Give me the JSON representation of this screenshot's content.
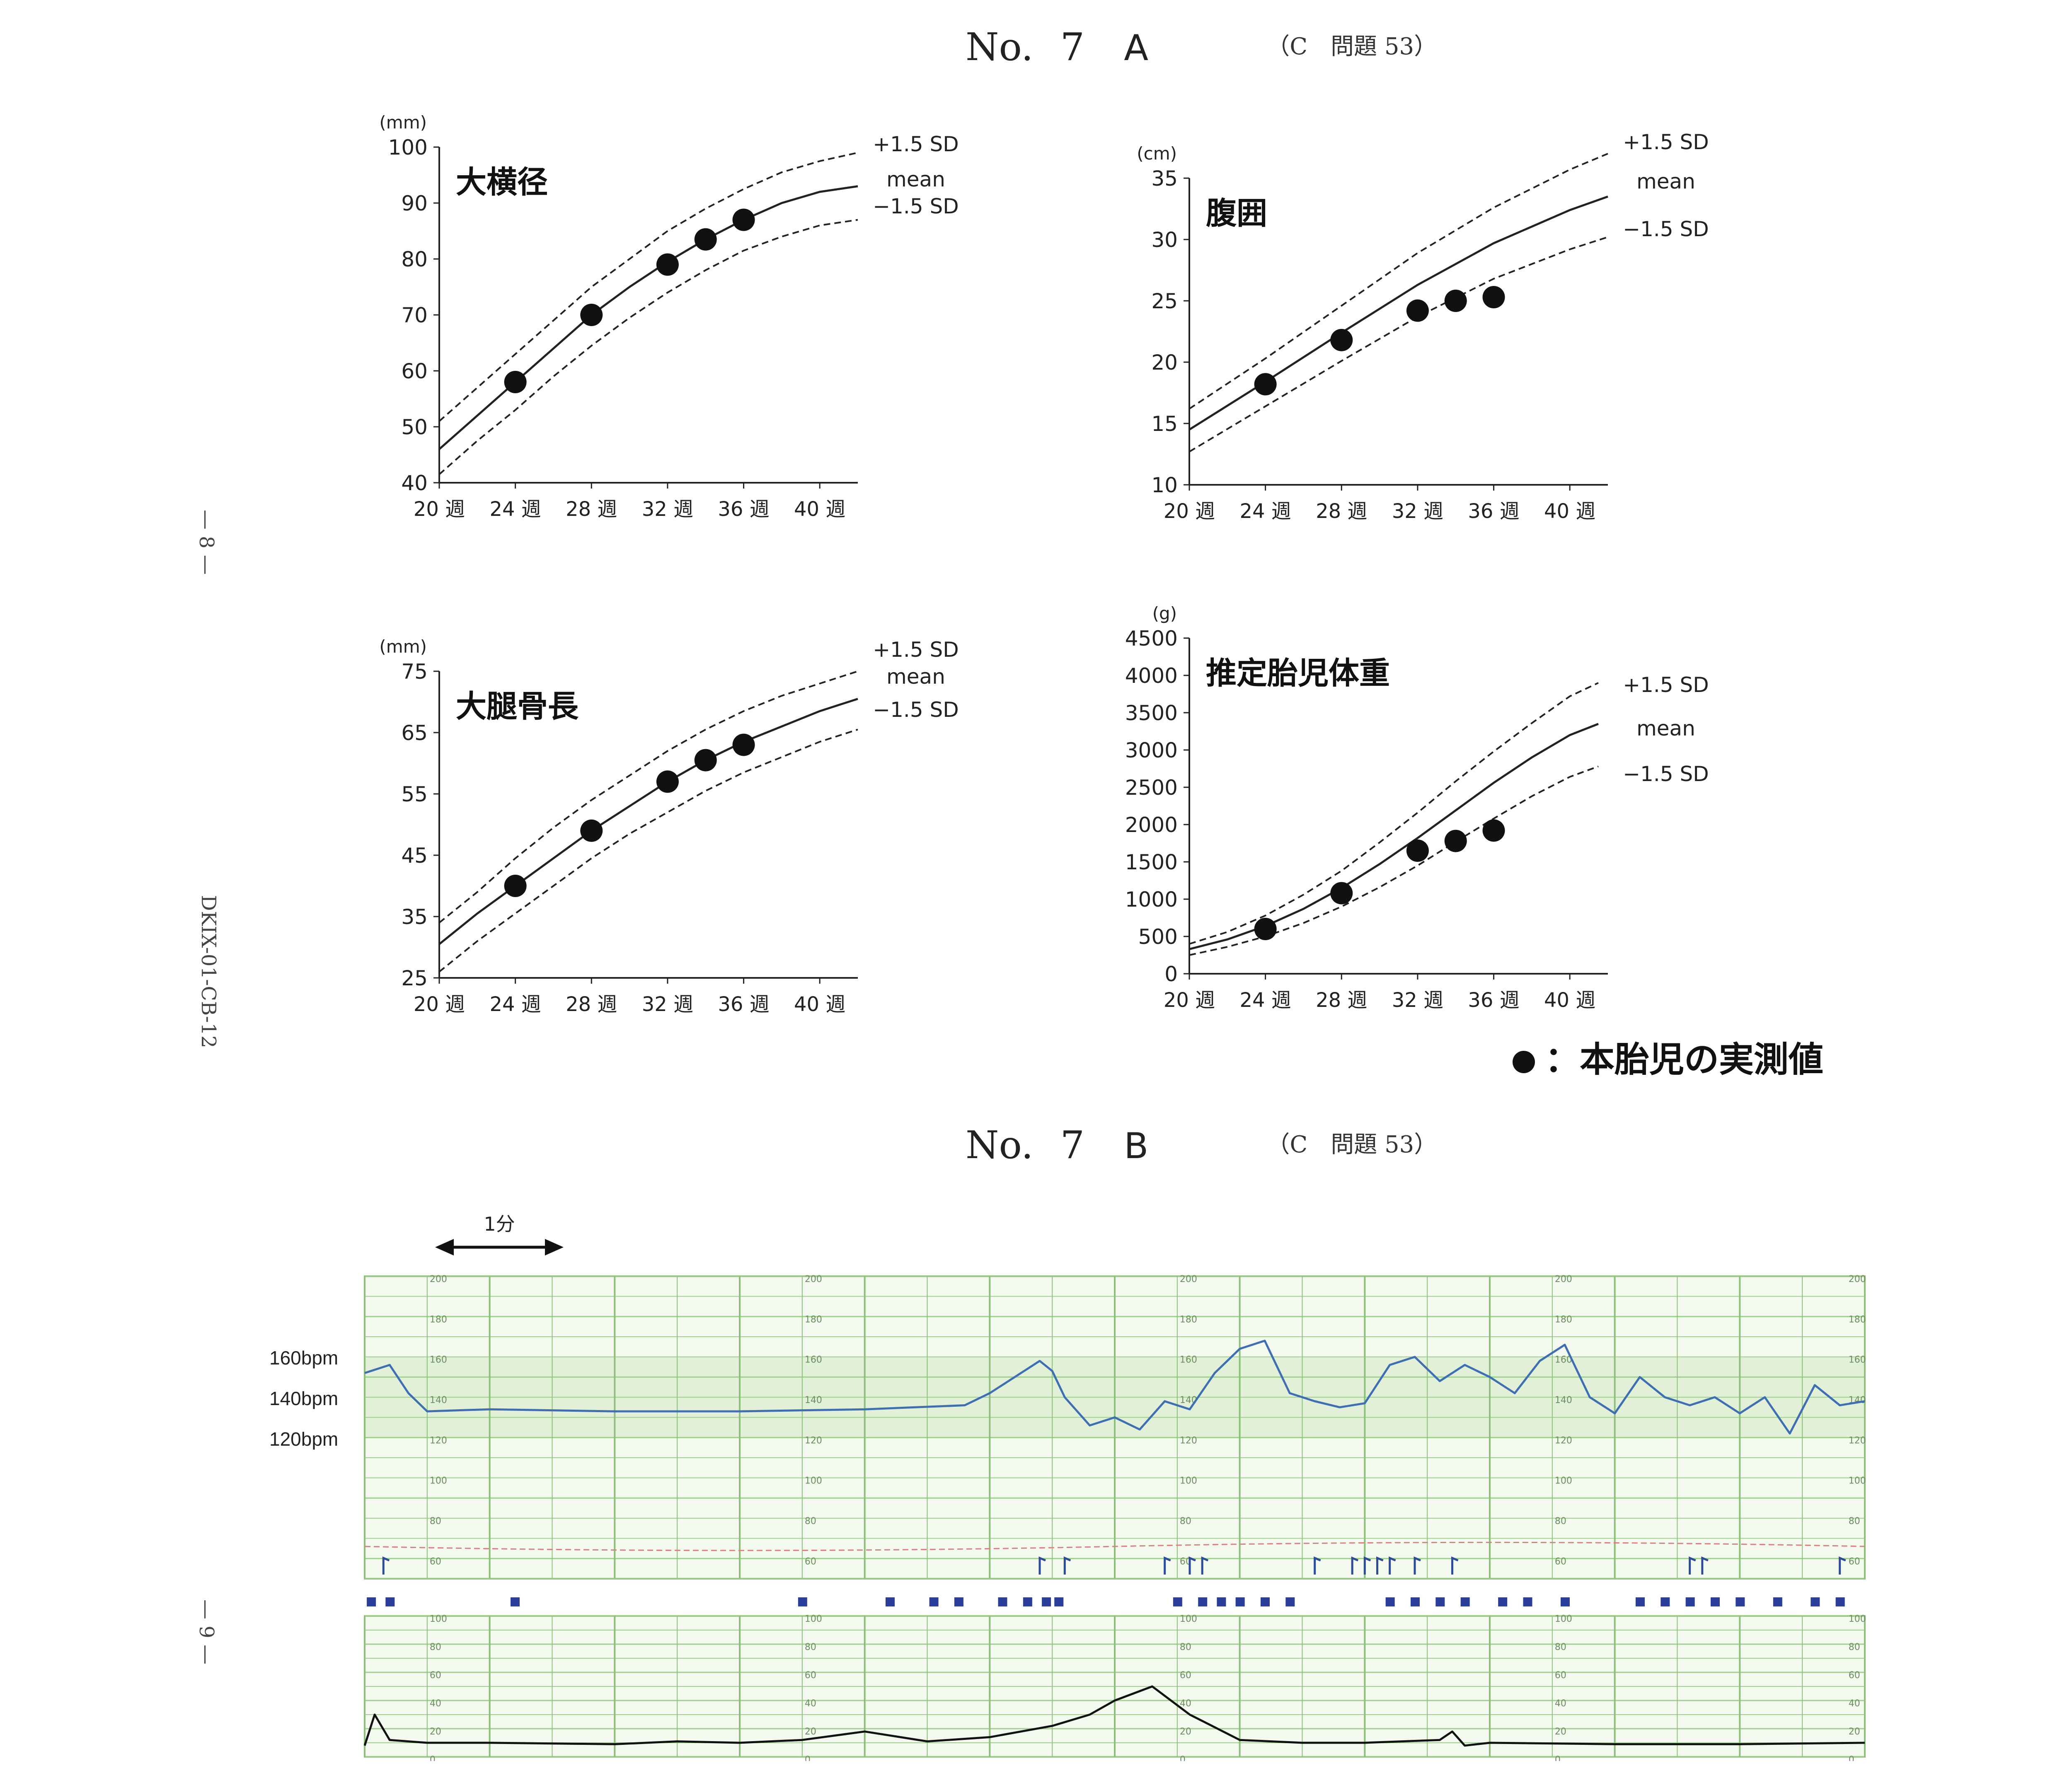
{
  "header_a": {
    "no": "No.",
    "num": "7",
    "letter": "A",
    "ref": "（C　問題 53）"
  },
  "header_b": {
    "no": "No.",
    "num": "7",
    "letter": "B",
    "ref": "（C　問題 53）"
  },
  "side": {
    "page8": "— 8 —",
    "code": "DKIX-01-CB-12",
    "page9": "— 9 —"
  },
  "legend": {
    "text": "：本胎児の実測値"
  },
  "chart_data": [
    {
      "id": "bpd",
      "type": "line",
      "title": "大横径",
      "unit": "(mm)",
      "ylim": [
        40,
        100
      ],
      "yticks": [
        40,
        50,
        60,
        70,
        80,
        90,
        100
      ],
      "xlim": [
        20,
        42
      ],
      "xticks": [
        20,
        24,
        28,
        32,
        36,
        40
      ],
      "xticklabels": [
        "20 週",
        "24 週",
        "28 週",
        "32 週",
        "36 週",
        "40 週"
      ],
      "series": [
        {
          "name": "+1.5 SD",
          "style": "dashed",
          "x": [
            20,
            22,
            24,
            26,
            28,
            30,
            32,
            34,
            36,
            38,
            40,
            42
          ],
          "y": [
            51,
            57,
            63,
            69,
            75,
            80,
            85,
            89,
            92.5,
            95.5,
            97.5,
            99
          ]
        },
        {
          "name": "mean",
          "style": "solid",
          "x": [
            20,
            22,
            24,
            26,
            28,
            30,
            32,
            34,
            36,
            38,
            40,
            42
          ],
          "y": [
            46,
            52,
            58,
            64,
            70,
            75,
            79.5,
            83.5,
            87,
            90,
            92,
            93
          ]
        },
        {
          "name": "-1.5 SD",
          "style": "dashed",
          "x": [
            20,
            22,
            24,
            26,
            28,
            30,
            32,
            34,
            36,
            38,
            40,
            42
          ],
          "y": [
            41.5,
            47.5,
            53,
            59,
            64.5,
            69.5,
            74,
            78,
            81.5,
            84,
            86,
            87
          ]
        }
      ],
      "points": {
        "x": [
          24,
          28,
          32,
          34,
          36
        ],
        "y": [
          58,
          70,
          79,
          83.5,
          87
        ]
      },
      "labels": [
        "+1.5 SD",
        "mean",
        "−1.5 SD"
      ]
    },
    {
      "id": "ac",
      "type": "line",
      "title": "腹囲",
      "unit": "(cm)",
      "ylim": [
        10,
        35
      ],
      "yticks": [
        10,
        15,
        20,
        25,
        30,
        35
      ],
      "xlim": [
        20,
        42
      ],
      "xticks": [
        20,
        24,
        28,
        32,
        36,
        40
      ],
      "xticklabels": [
        "20 週",
        "24 週",
        "28 週",
        "32 週",
        "36 週",
        "40 週"
      ],
      "series": [
        {
          "name": "+1.5 SD",
          "style": "dashed",
          "x": [
            20,
            24,
            28,
            32,
            36,
            40,
            42
          ],
          "y": [
            16.2,
            20.3,
            24.6,
            28.9,
            32.6,
            35.7,
            37
          ]
        },
        {
          "name": "mean",
          "style": "solid",
          "x": [
            20,
            24,
            28,
            32,
            36,
            40,
            42
          ],
          "y": [
            14.5,
            18.4,
            22.4,
            26.3,
            29.7,
            32.4,
            33.5
          ]
        },
        {
          "name": "-1.5 SD",
          "style": "dashed",
          "x": [
            20,
            24,
            28,
            32,
            36,
            40,
            42
          ],
          "y": [
            12.7,
            16.4,
            20.1,
            23.7,
            26.8,
            29.2,
            30.2
          ]
        }
      ],
      "points": {
        "x": [
          24,
          28,
          32,
          34,
          36
        ],
        "y": [
          18.2,
          21.8,
          24.2,
          25,
          25.3
        ]
      },
      "labels": [
        "+1.5 SD",
        "mean",
        "−1.5 SD"
      ]
    },
    {
      "id": "fl",
      "type": "line",
      "title": "大腿骨長",
      "unit": "(mm)",
      "ylim": [
        25,
        75
      ],
      "yticks": [
        25,
        35,
        45,
        55,
        65,
        75
      ],
      "xlim": [
        20,
        42
      ],
      "xticks": [
        20,
        24,
        28,
        32,
        36,
        40
      ],
      "xticklabels": [
        "20 週",
        "24 週",
        "28 週",
        "32 週",
        "36 週",
        "40 週"
      ],
      "series": [
        {
          "name": "+1.5 SD",
          "style": "dashed",
          "x": [
            20,
            22,
            24,
            26,
            28,
            30,
            32,
            34,
            36,
            38,
            40,
            42
          ],
          "y": [
            34,
            39,
            44.5,
            49.5,
            54,
            58,
            62,
            65.5,
            68.5,
            71,
            73,
            75
          ]
        },
        {
          "name": "mean",
          "style": "solid",
          "x": [
            20,
            22,
            24,
            26,
            28,
            30,
            32,
            34,
            36,
            38,
            40,
            42
          ],
          "y": [
            30.5,
            35.5,
            40,
            44.5,
            49,
            53,
            57,
            60.5,
            63.5,
            66,
            68.5,
            70.5
          ]
        },
        {
          "name": "-1.5 SD",
          "style": "dashed",
          "x": [
            20,
            22,
            24,
            26,
            28,
            30,
            32,
            34,
            36,
            38,
            40,
            42
          ],
          "y": [
            26,
            31,
            35.5,
            40,
            44.5,
            48.5,
            52,
            55.5,
            58.5,
            61,
            63.5,
            65.5
          ]
        }
      ],
      "points": {
        "x": [
          24,
          28,
          32,
          34,
          36
        ],
        "y": [
          40,
          49,
          57,
          60.5,
          63
        ]
      },
      "labels": [
        "+1.5 SD",
        "mean",
        "−1.5 SD"
      ]
    },
    {
      "id": "efw",
      "type": "line",
      "title": "推定胎児体重",
      "unit": "(g)",
      "ylim": [
        0,
        4500
      ],
      "yticks": [
        0,
        500,
        1000,
        1500,
        2000,
        2500,
        3000,
        3500,
        4000,
        4500
      ],
      "xlim": [
        20,
        42
      ],
      "xticks": [
        20,
        24,
        28,
        32,
        36,
        40
      ],
      "xticklabels": [
        "20 週",
        "24 週",
        "28 週",
        "32 週",
        "36 週",
        "40 週"
      ],
      "series": [
        {
          "name": "+1.5 SD",
          "style": "dashed",
          "x": [
            20,
            22,
            24,
            26,
            28,
            30,
            32,
            34,
            36,
            38,
            40,
            41.5
          ],
          "y": [
            400,
            560,
            780,
            1060,
            1380,
            1760,
            2160,
            2580,
            2980,
            3360,
            3720,
            3900
          ]
        },
        {
          "name": "mean",
          "style": "solid",
          "x": [
            20,
            22,
            24,
            26,
            28,
            30,
            32,
            34,
            36,
            38,
            40,
            41.5
          ],
          "y": [
            330,
            460,
            640,
            870,
            1150,
            1470,
            1820,
            2190,
            2560,
            2900,
            3200,
            3350
          ]
        },
        {
          "name": "-1.5 SD",
          "style": "dashed",
          "x": [
            20,
            22,
            24,
            26,
            28,
            30,
            32,
            34,
            36,
            38,
            40,
            41.5
          ],
          "y": [
            250,
            360,
            500,
            680,
            900,
            1160,
            1450,
            1770,
            2080,
            2380,
            2640,
            2780
          ]
        }
      ],
      "points": {
        "x": [
          24,
          28,
          32,
          34,
          36
        ],
        "y": [
          600,
          1080,
          1650,
          1780,
          1920
        ]
      },
      "labels": [
        "+1.5 SD",
        "mean",
        "−1.5 SD"
      ]
    },
    {
      "id": "ctg",
      "type": "line",
      "title": "CTG",
      "scale_label": "1分",
      "ylabels": [
        "160bpm",
        "140bpm",
        "120bpm"
      ],
      "fhr_grid_labels": [
        "200",
        "180",
        "160",
        "140",
        "120",
        "100",
        "80",
        "60"
      ],
      "toco_grid_labels": [
        "100",
        "80",
        "60",
        "40",
        "20",
        "0"
      ],
      "time_minutes": 12,
      "fhr": {
        "baseline": 133,
        "series_color": "#3d6fb2",
        "t": [
          0,
          0.2,
          0.35,
          0.5,
          1,
          2,
          3,
          4,
          4.8,
          5,
          5.2,
          5.4,
          5.5,
          5.6,
          5.8,
          6.0,
          6.2,
          6.4,
          6.6,
          6.8,
          7.0,
          7.2,
          7.4,
          7.6,
          7.8,
          8.0,
          8.2,
          8.4,
          8.6,
          8.8,
          9.0,
          9.2,
          9.4,
          9.6,
          9.8,
          10.0,
          10.2,
          10.4,
          10.6,
          10.8,
          11.0,
          11.2,
          11.4,
          11.6,
          11.8,
          12.0
        ],
        "v": [
          152,
          156,
          142,
          133,
          134,
          133,
          133,
          134,
          136,
          142,
          150,
          158,
          153,
          140,
          126,
          130,
          124,
          138,
          134,
          152,
          164,
          168,
          142,
          138,
          135,
          137,
          156,
          160,
          148,
          156,
          150,
          142,
          158,
          166,
          140,
          132,
          150,
          140,
          136,
          140,
          132,
          140,
          122,
          146,
          136,
          138
        ]
      },
      "toco": {
        "baseline": 10,
        "series_color": "#111111",
        "t": [
          0,
          0.08,
          0.2,
          0.5,
          1,
          2,
          2.5,
          3,
          3.5,
          4,
          4.5,
          5,
          5.5,
          5.8,
          6.0,
          6.3,
          6.6,
          7,
          7.5,
          8,
          8.6,
          8.7,
          8.8,
          9,
          10,
          11,
          12
        ],
        "v": [
          8,
          30,
          12,
          10,
          10,
          9,
          11,
          10,
          12,
          18,
          11,
          14,
          22,
          30,
          40,
          50,
          30,
          12,
          10,
          10,
          12,
          18,
          8,
          10,
          9,
          9,
          10
        ]
      },
      "movement_markers_min": [
        0.15,
        5.4,
        5.6,
        6.4,
        6.6,
        6.7,
        7.6,
        7.9,
        8.0,
        8.1,
        8.2,
        8.4,
        8.7,
        10.6,
        10.7,
        11.8
      ]
    }
  ]
}
